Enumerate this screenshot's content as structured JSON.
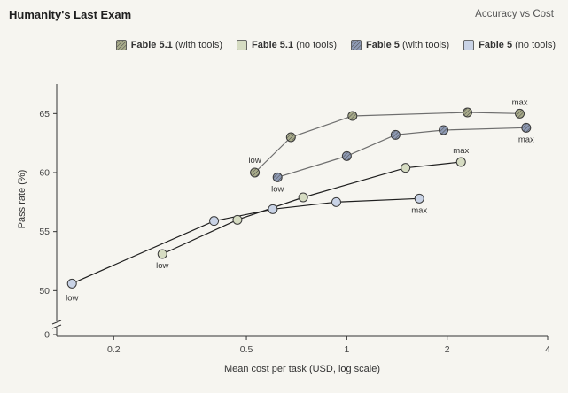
{
  "header": {
    "title": "Humanity's Last Exam",
    "subtitle": "Accuracy vs Cost"
  },
  "chart_data": {
    "type": "line",
    "xscale": "log",
    "xlabel": "Mean cost per task (USD, log scale)",
    "ylabel": "Pass rate (%)",
    "xlim": [
      0.135,
      4
    ],
    "ylim": [
      0,
      67.5
    ],
    "y_axis_break": true,
    "xticks": [
      {
        "value": 0.2,
        "label": "0.2"
      },
      {
        "value": 0.5,
        "label": "0.5"
      },
      {
        "value": 1,
        "label": "1"
      },
      {
        "value": 2,
        "label": "2"
      },
      {
        "value": 4,
        "label": "4"
      }
    ],
    "yticks": [
      {
        "value": 0,
        "label": "0"
      },
      {
        "value": 50,
        "label": "50"
      },
      {
        "value": 55,
        "label": "55"
      },
      {
        "value": 60,
        "label": "60"
      },
      {
        "value": 65,
        "label": "65"
      }
    ],
    "grid": false,
    "legend_position": "top-right",
    "series": [
      {
        "name": "Fable 5.1",
        "name_suffix": "(with tools)",
        "color": "#a8ab8a",
        "line_color": "#6e6e6e",
        "hatched": true,
        "points": [
          {
            "x": 0.53,
            "y": 60.0,
            "label": "low"
          },
          {
            "x": 0.68,
            "y": 63.0
          },
          {
            "x": 1.04,
            "y": 64.8
          },
          {
            "x": 2.3,
            "y": 65.1
          },
          {
            "x": 3.3,
            "y": 65.0,
            "label": "max"
          }
        ]
      },
      {
        "name": "Fable 5.1",
        "name_suffix": "(no tools)",
        "color": "#d6dcc2",
        "line_color": "#1e1e1e",
        "hatched": false,
        "points": [
          {
            "x": 0.28,
            "y": 53.1,
            "label": "low"
          },
          {
            "x": 0.47,
            "y": 56.0
          },
          {
            "x": 0.74,
            "y": 57.9
          },
          {
            "x": 1.5,
            "y": 60.4
          },
          {
            "x": 2.2,
            "y": 60.9,
            "label": "max"
          }
        ]
      },
      {
        "name": "Fable 5",
        "name_suffix": "(with tools)",
        "color": "#8e9ab4",
        "line_color": "#6e6e6e",
        "hatched": true,
        "points": [
          {
            "x": 0.62,
            "y": 59.6,
            "label": "low"
          },
          {
            "x": 1.0,
            "y": 61.4
          },
          {
            "x": 1.4,
            "y": 63.2
          },
          {
            "x": 1.95,
            "y": 63.6
          },
          {
            "x": 3.45,
            "y": 63.8,
            "label": "max"
          }
        ]
      },
      {
        "name": "Fable 5",
        "name_suffix": "(no tools)",
        "color": "#c9d3e6",
        "line_color": "#1e1e1e",
        "hatched": false,
        "points": [
          {
            "x": 0.15,
            "y": 50.6,
            "label": "low"
          },
          {
            "x": 0.4,
            "y": 55.9
          },
          {
            "x": 0.6,
            "y": 56.9
          },
          {
            "x": 0.93,
            "y": 57.5
          },
          {
            "x": 1.65,
            "y": 57.8,
            "label": "max"
          }
        ]
      }
    ]
  }
}
